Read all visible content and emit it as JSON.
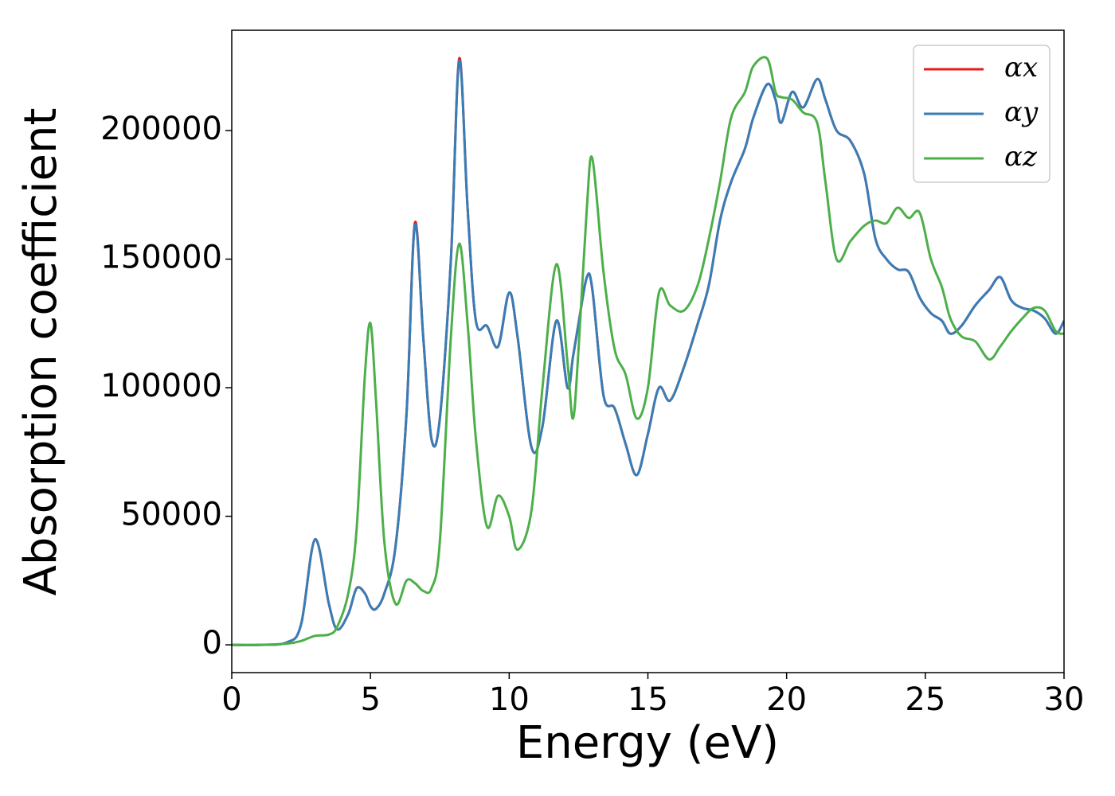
{
  "chart_data": {
    "type": "line",
    "x_label": "Energy (eV)",
    "y_label": "Absorption coefficient",
    "x": [
      0,
      1,
      2,
      2.5,
      3,
      3.5,
      3.8,
      4.2,
      4.5,
      4.8,
      5.0,
      5.2,
      5.5,
      5.9,
      6.3,
      6.6,
      6.9,
      7.2,
      7.5,
      7.9,
      8.2,
      8.5,
      8.8,
      9.2,
      9.6,
      10.0,
      10.3,
      10.8,
      11.2,
      11.7,
      12.1,
      12.3,
      12.5,
      12.8,
      13.0,
      13.4,
      13.8,
      14.2,
      14.6,
      15.0,
      15.4,
      15.8,
      16.3,
      16.8,
      17.2,
      17.6,
      18.0,
      18.5,
      18.8,
      19.3,
      19.6,
      19.8,
      20.2,
      20.6,
      21.1,
      21.4,
      21.8,
      22.3,
      22.8,
      23.2,
      23.6,
      24.0,
      24.4,
      24.8,
      25.2,
      25.6,
      25.9,
      26.3,
      26.8,
      27.3,
      27.7,
      28.1,
      28.5,
      28.9,
      29.3,
      29.7,
      30
    ],
    "series": [
      {
        "name": "αx",
        "color": "#e41a1c",
        "values": [
          0,
          0,
          1000,
          8000,
          41000,
          16000,
          6000,
          12000,
          22000,
          20000,
          15000,
          14000,
          20000,
          38000,
          90000,
          164000,
          120000,
          80000,
          88000,
          150000,
          228000,
          170000,
          126000,
          124000,
          116000,
          137000,
          120000,
          77000,
          85000,
          126000,
          100000,
          112000,
          125000,
          143000,
          138000,
          97000,
          92000,
          78000,
          66000,
          82000,
          100000,
          95000,
          108000,
          125000,
          140000,
          165000,
          180000,
          193000,
          205000,
          218000,
          212000,
          203000,
          215000,
          209000,
          220000,
          212000,
          200000,
          196000,
          183000,
          158000,
          150000,
          146000,
          145000,
          135000,
          129000,
          126000,
          121000,
          124000,
          132000,
          138000,
          143000,
          134000,
          131000,
          130000,
          127000,
          121000,
          126000
        ]
      },
      {
        "name": "αy",
        "color": "#377eb8",
        "values": [
          0,
          0,
          1000,
          8000,
          41000,
          16000,
          6000,
          12000,
          22000,
          20000,
          15000,
          14000,
          20000,
          38000,
          90000,
          163000,
          120000,
          80000,
          88000,
          150000,
          227000,
          170000,
          126000,
          124000,
          116000,
          137000,
          120000,
          77000,
          85000,
          126000,
          100000,
          112000,
          125000,
          143000,
          138000,
          97000,
          92000,
          78000,
          66000,
          82000,
          100000,
          95000,
          108000,
          125000,
          140000,
          165000,
          180000,
          193000,
          205000,
          218000,
          212000,
          203000,
          215000,
          209000,
          220000,
          212000,
          200000,
          196000,
          183000,
          158000,
          150000,
          146000,
          145000,
          135000,
          129000,
          126000,
          121000,
          124000,
          132000,
          138000,
          143000,
          134000,
          131000,
          130000,
          127000,
          121000,
          126000
        ]
      },
      {
        "name": "αz",
        "color": "#4daf4a",
        "values": [
          0,
          0,
          500,
          1500,
          3500,
          4000,
          7000,
          20000,
          45000,
          105000,
          125000,
          95000,
          40000,
          16000,
          25000,
          24000,
          21000,
          22000,
          40000,
          120000,
          156000,
          125000,
          80000,
          46000,
          58000,
          50000,
          37000,
          52000,
          100000,
          148000,
          110000,
          88000,
          115000,
          170000,
          189000,
          145000,
          115000,
          105000,
          88000,
          100000,
          137000,
          132000,
          130000,
          140000,
          158000,
          180000,
          205000,
          215000,
          225000,
          228000,
          215000,
          213000,
          212000,
          207000,
          203000,
          180000,
          150000,
          157000,
          163000,
          165000,
          164000,
          170000,
          166000,
          168000,
          150000,
          139000,
          127000,
          120000,
          118000,
          111000,
          116000,
          122000,
          127000,
          131000,
          130000,
          122000,
          121000
        ]
      }
    ],
    "xlim": [
      0,
      30
    ],
    "xticks": [
      0,
      5,
      10,
      15,
      20,
      25,
      30
    ],
    "ylim": [
      -10800,
      239000
    ],
    "yticks": [
      0,
      50000,
      100000,
      150000,
      200000
    ],
    "legend": "upper right"
  }
}
